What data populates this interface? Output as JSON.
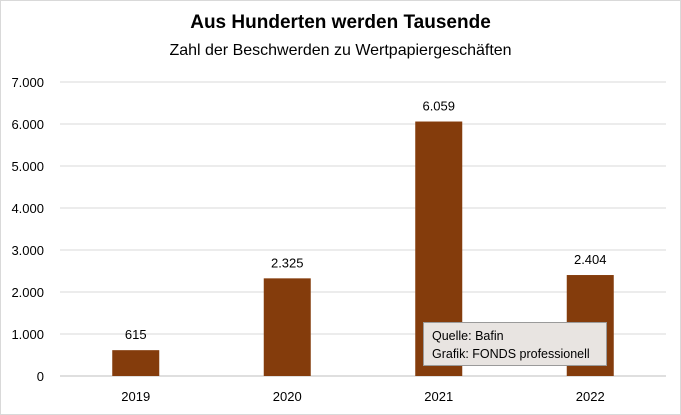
{
  "chart_data": {
    "type": "bar",
    "title": "Aus Hunderten werden Tausende",
    "subtitle": "Zahl der Beschwerden zu Wertpapiergeschäften",
    "categories": [
      "2019",
      "2020",
      "2021",
      "2022"
    ],
    "values": [
      615,
      2325,
      6059,
      2404
    ],
    "data_labels": [
      "615",
      "2.325",
      "6.059",
      "2.404"
    ],
    "ylim": [
      0,
      7000
    ],
    "yticks": [
      0,
      1000,
      2000,
      3000,
      4000,
      5000,
      6000,
      7000
    ],
    "ytick_labels": [
      "0",
      "1.000",
      "2.000",
      "3.000",
      "4.000",
      "5.000",
      "6.000",
      "7.000"
    ],
    "grid": true,
    "legend": "none",
    "colors": {
      "bar": "#843c0c",
      "grid": "#d9d9d9",
      "axis": "#bfbfbf"
    }
  },
  "source_note": {
    "line1": "Quelle: Bafin",
    "line2": "Grafik: FONDS professionell"
  }
}
